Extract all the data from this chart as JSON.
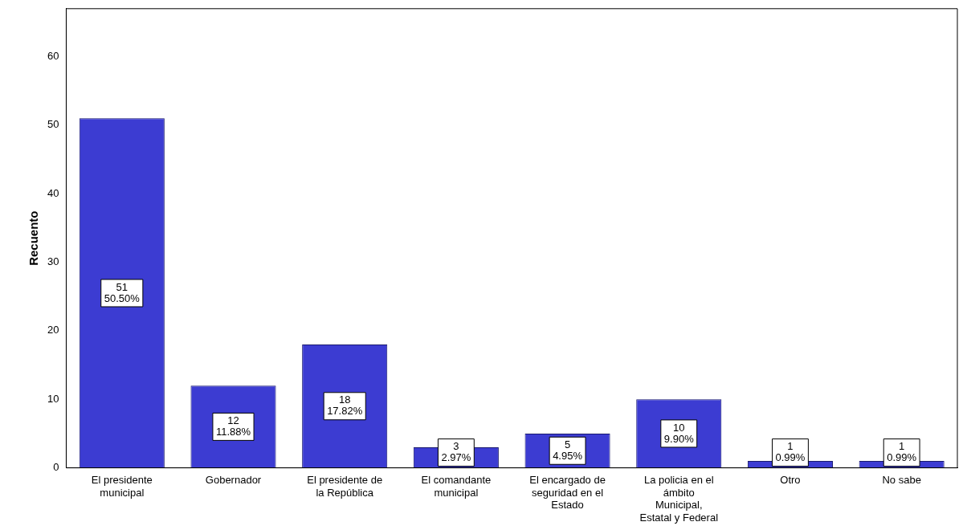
{
  "chart_data": {
    "type": "bar",
    "ylabel": "Recuento",
    "categories": [
      "El presidente municipal",
      "Gobernador",
      "El presidente de la República",
      "El comandante municipal",
      "El encargado de seguridad en el Estado",
      "La policia en el ámbito Municipal, Estatal y Federal",
      "Otro",
      "No sabe"
    ],
    "values": [
      51,
      12,
      18,
      3,
      5,
      10,
      1,
      1
    ],
    "value_labels": [
      "51\n50.50%",
      "12\n11.88%",
      "18\n17.82%",
      "3\n2.97%",
      "5\n4.95%",
      "10\n9.90%",
      "1\n0.99%",
      "1\n0.99%"
    ],
    "color": "#3c3cd2",
    "ylim": [
      0,
      67
    ],
    "yticks": [
      0,
      10,
      20,
      30,
      40,
      50,
      60
    ],
    "grid": false,
    "legend": false
  }
}
